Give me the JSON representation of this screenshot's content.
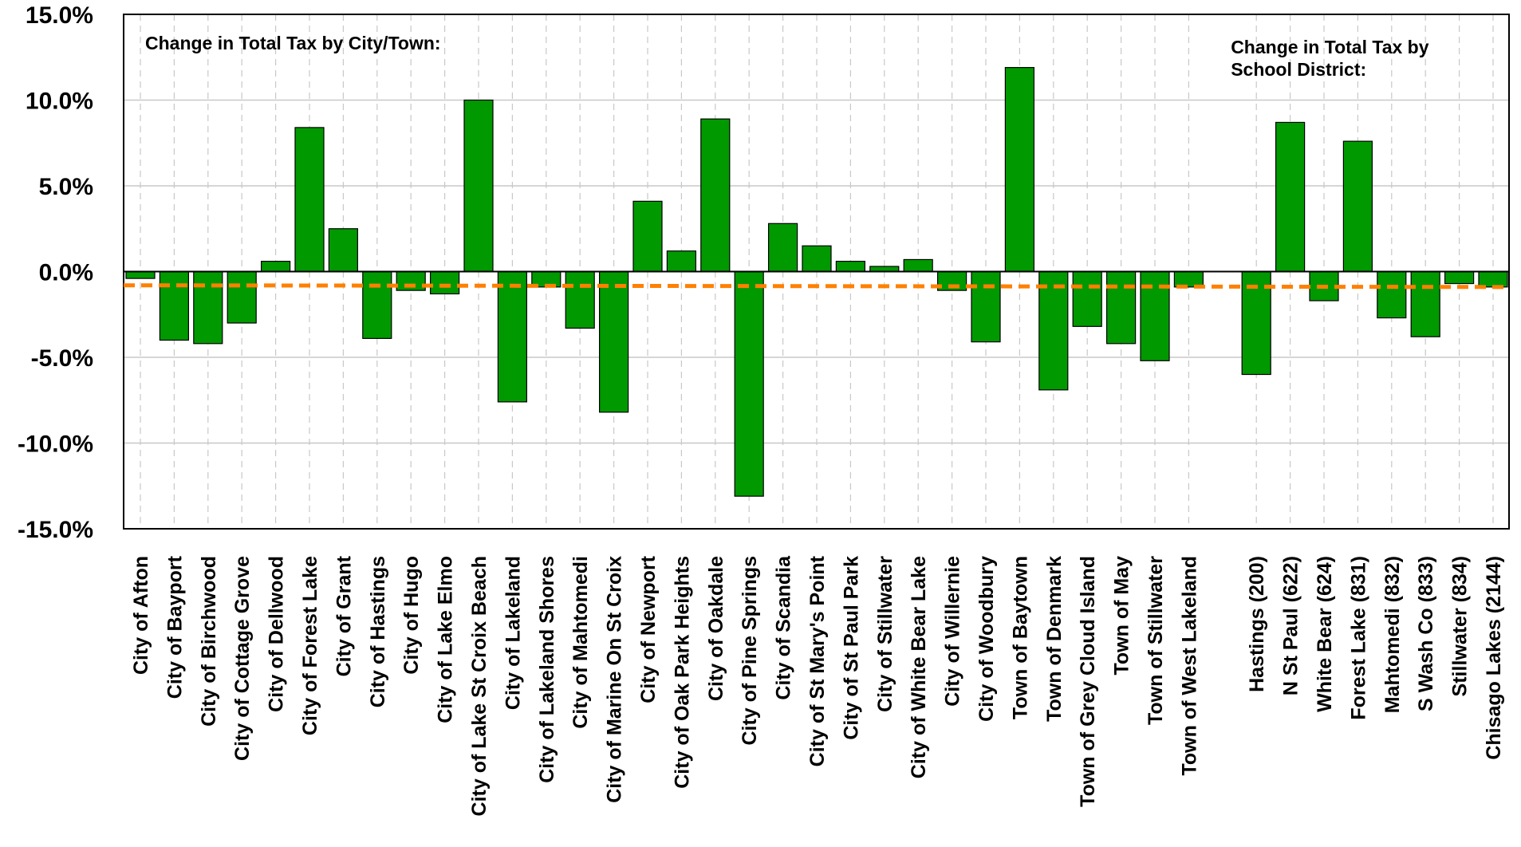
{
  "chart_data": {
    "type": "bar",
    "ylim": [
      -15,
      15
    ],
    "y_ticks": [
      15,
      10,
      5,
      0,
      -5,
      -10,
      -15
    ],
    "y_tick_labels": [
      "15.0%",
      "10.0%",
      "5.0%",
      "0.0%",
      "-5.0%",
      "-10.0%",
      "-15.0%"
    ],
    "y_unit": "%",
    "grid": true,
    "bar_color": "#009900",
    "reference_line": {
      "color": "#ff8000",
      "style": "dashed",
      "y_start": -0.8,
      "y_end": -0.9
    },
    "groups": [
      {
        "annotation": "Change in Total Tax by City/Town:",
        "categories": [
          "City of Afton",
          "City of Bayport",
          "City of Birchwood",
          "City of Cottage Grove",
          "City of Dellwood",
          "City of Forest Lake",
          "City of Grant",
          "City of Hastings",
          "City of Hugo",
          "City of Lake Elmo",
          "City of Lake St Croix Beach",
          "City of Lakeland",
          "City of Lakeland Shores",
          "City of Mahtomedi",
          "City of Marine On St Croix",
          "City of Newport",
          "City of Oak Park Heights",
          "City of Oakdale",
          "City of Pine Springs",
          "City of Scandia",
          "City of St Mary's Point",
          "City of St Paul Park",
          "City of Stillwater",
          "City of White Bear Lake",
          "City of Willernie",
          "City of Woodbury",
          "Town of Baytown",
          "Town of Denmark",
          "Town of Grey Cloud Island",
          "Town of May",
          "Town of Stillwater",
          "Town of West Lakeland"
        ],
        "values": [
          -0.4,
          -4.0,
          -4.2,
          -3.0,
          0.6,
          8.4,
          2.5,
          -3.9,
          -1.1,
          -1.3,
          10.0,
          -7.6,
          -0.9,
          -3.3,
          -8.2,
          4.1,
          1.2,
          8.9,
          -13.1,
          2.8,
          1.5,
          0.6,
          0.3,
          0.7,
          -1.1,
          -4.1,
          11.9,
          -6.9,
          -3.2,
          -4.2,
          -5.2,
          -0.9
        ]
      },
      {
        "annotation": "Change in Total Tax by School District:",
        "categories": [
          "Hastings (200)",
          "N St Paul (622)",
          "White Bear (624)",
          "Forest Lake (831)",
          "Mahtomedi (832)",
          "S Wash Co (833)",
          "Stillwater (834)",
          "Chisago Lakes (2144)"
        ],
        "values": [
          -6.0,
          8.7,
          -1.7,
          7.6,
          -2.7,
          -3.8,
          -0.7,
          -0.9
        ]
      }
    ]
  }
}
